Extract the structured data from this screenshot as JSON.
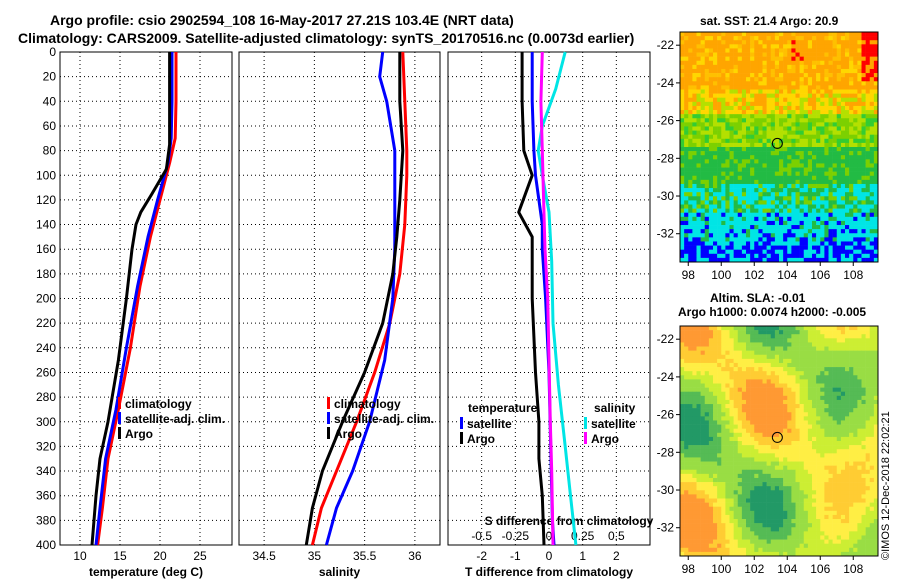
{
  "title": {
    "line1": "Argo profile: csio 2902594_108 16-May-2017 27.21S 103.4E (NRT data)",
    "line2": "Climatology: CARS2009. Satellite-adjusted climatology: synTS_20170516.nc (0.0073d earlier)"
  },
  "map_top": {
    "title": "sat. SST: 21.4 Argo: 20.9",
    "lat_ticks": [
      "-22",
      "-24",
      "-26",
      "-28",
      "-30",
      "-32"
    ],
    "lon_ticks": [
      "98",
      "100",
      "102",
      "104",
      "106",
      "108"
    ],
    "float_lon": 103.4,
    "float_lat": -27.21
  },
  "map_bottom": {
    "title1": "Altim. SLA: -0.01",
    "title2": "Argo h1000: 0.0074 h2000: -0.005",
    "lat_ticks": [
      "-22",
      "-24",
      "-26",
      "-28",
      "-30",
      "-32"
    ],
    "lon_ticks": [
      "98",
      "100",
      "102",
      "104",
      "106",
      "108"
    ],
    "float_lon": 103.4,
    "float_lat": -27.21
  },
  "imos": "©IMOS 12-Dec-2018 22:02:21",
  "colors": {
    "climatology": "#ff0000",
    "satellite": "#0000ff",
    "argo": "#000000",
    "sat_salinity": "#00e5e5",
    "argo_salinity": "#ff00ff"
  },
  "chart_data": [
    {
      "type": "line",
      "name": "temperature",
      "xlabel": "temperature (deg C)",
      "ylabel": "",
      "xlim": [
        7.5,
        29
      ],
      "ylim": [
        0,
        400
      ],
      "y_reversed": true,
      "grid": true,
      "xticks": [
        10,
        15,
        20,
        25
      ],
      "xtick_labels": [
        "10",
        "15",
        "20",
        "25"
      ],
      "yticks": [
        0,
        20,
        40,
        60,
        80,
        100,
        120,
        140,
        160,
        180,
        200,
        220,
        240,
        260,
        280,
        300,
        320,
        340,
        360,
        380,
        400
      ],
      "ytick_labels": [
        "0",
        "20",
        "40",
        "60",
        "80",
        "100",
        "120",
        "140",
        "160",
        "180",
        "200",
        "220",
        "240",
        "260",
        "280",
        "300",
        "320",
        "340",
        "360",
        "380",
        "400"
      ],
      "legend": [
        "climatology",
        "satellite-adj. clim.",
        "Argo"
      ],
      "legend_position": "lower-right",
      "series": [
        {
          "name": "climatology",
          "color": "#ff0000",
          "points": [
            [
              22.0,
              0
            ],
            [
              22.0,
              40
            ],
            [
              21.9,
              70
            ],
            [
              21.2,
              90
            ],
            [
              20.0,
              120
            ],
            [
              18.8,
              150
            ],
            [
              17.5,
              190
            ],
            [
              16.3,
              240
            ],
            [
              14.8,
              290
            ],
            [
              13.5,
              330
            ],
            [
              12.8,
              370
            ],
            [
              12.2,
              400
            ]
          ]
        },
        {
          "name": "satellite-adj. clim.",
          "color": "#0000ff",
          "points": [
            [
              21.5,
              0
            ],
            [
              21.5,
              40
            ],
            [
              21.4,
              70
            ],
            [
              21.0,
              90
            ],
            [
              19.7,
              120
            ],
            [
              18.5,
              150
            ],
            [
              17.2,
              190
            ],
            [
              15.8,
              240
            ],
            [
              14.5,
              290
            ],
            [
              13.2,
              330
            ],
            [
              12.5,
              370
            ],
            [
              12.0,
              400
            ]
          ]
        },
        {
          "name": "Argo",
          "color": "#000000",
          "points": [
            [
              21.2,
              0
            ],
            [
              21.2,
              40
            ],
            [
              21.2,
              75
            ],
            [
              20.8,
              95
            ],
            [
              19.0,
              115
            ],
            [
              17.6,
              130
            ],
            [
              17.0,
              140
            ],
            [
              16.5,
              160
            ],
            [
              15.8,
              200
            ],
            [
              14.8,
              250
            ],
            [
              13.5,
              300
            ],
            [
              12.5,
              330
            ],
            [
              12.0,
              360
            ],
            [
              11.5,
              400
            ]
          ]
        }
      ]
    },
    {
      "type": "line",
      "name": "salinity",
      "xlabel": "salinity",
      "ylabel": "",
      "xlim": [
        34.25,
        36.25
      ],
      "ylim": [
        0,
        400
      ],
      "y_reversed": true,
      "grid": true,
      "xticks": [
        34.5,
        35,
        35.5,
        36
      ],
      "xtick_labels": [
        "34.5",
        "35",
        "35.5",
        "36"
      ],
      "legend": [
        "climatology",
        "satellite-adj. clim.",
        "Argo"
      ],
      "legend_position": "lower-right",
      "series": [
        {
          "name": "climatology",
          "color": "#ff0000",
          "points": [
            [
              35.88,
              0
            ],
            [
              35.9,
              40
            ],
            [
              35.92,
              80
            ],
            [
              35.92,
              100
            ],
            [
              35.9,
              140
            ],
            [
              35.85,
              180
            ],
            [
              35.75,
              220
            ],
            [
              35.6,
              260
            ],
            [
              35.42,
              300
            ],
            [
              35.22,
              340
            ],
            [
              35.07,
              370
            ],
            [
              34.98,
              400
            ]
          ]
        },
        {
          "name": "satellite-adj. clim.",
          "color": "#0000ff",
          "points": [
            [
              35.68,
              0
            ],
            [
              35.65,
              20
            ],
            [
              35.72,
              40
            ],
            [
              35.8,
              80
            ],
            [
              35.8,
              120
            ],
            [
              35.8,
              160
            ],
            [
              35.78,
              200
            ],
            [
              35.7,
              250
            ],
            [
              35.55,
              300
            ],
            [
              35.38,
              340
            ],
            [
              35.22,
              370
            ],
            [
              35.12,
              400
            ]
          ]
        },
        {
          "name": "Argo",
          "color": "#000000",
          "points": [
            [
              35.85,
              0
            ],
            [
              35.85,
              40
            ],
            [
              35.88,
              80
            ],
            [
              35.85,
              120
            ],
            [
              35.82,
              150
            ],
            [
              35.78,
              180
            ],
            [
              35.68,
              220
            ],
            [
              35.5,
              260
            ],
            [
              35.28,
              300
            ],
            [
              35.08,
              340
            ],
            [
              34.98,
              370
            ],
            [
              34.92,
              400
            ]
          ]
        }
      ]
    },
    {
      "type": "line",
      "name": "difference",
      "xlabel": "T difference from climatology",
      "x2label": "S difference from climatology",
      "ylabel": "",
      "xlim": [
        -3,
        3
      ],
      "ylim": [
        0,
        400
      ],
      "y_reversed": true,
      "grid": true,
      "xticks": [
        -2,
        -1,
        0,
        1,
        2
      ],
      "xtick_labels": [
        "-2",
        "-1",
        "0",
        "1",
        "2"
      ],
      "x2ticks": [
        -0.5,
        -0.25,
        0,
        0.25,
        0.5
      ],
      "x2tick_labels": [
        "-0.5",
        "-0.25",
        "0",
        "0.25",
        "0.5"
      ],
      "x2lim": [
        -0.75,
        0.75
      ],
      "legend_groups": [
        {
          "heading": "temperature",
          "items": [
            "satellite",
            "Argo"
          ]
        },
        {
          "heading": "salinity",
          "items": [
            "satellite",
            "Argo"
          ]
        }
      ],
      "legend_position": "lower",
      "series": [
        {
          "name": "temperature satellite",
          "color": "#0000ff",
          "axis": "T",
          "points": [
            [
              -0.5,
              0
            ],
            [
              -0.5,
              40
            ],
            [
              -0.45,
              80
            ],
            [
              -0.4,
              100
            ],
            [
              -0.3,
              120
            ],
            [
              -0.2,
              140
            ],
            [
              -0.2,
              160
            ],
            [
              -0.1,
              200
            ],
            [
              0,
              260
            ],
            [
              0.05,
              320
            ],
            [
              0.1,
              380
            ],
            [
              0.15,
              400
            ]
          ]
        },
        {
          "name": "temperature Argo",
          "color": "#000000",
          "axis": "T",
          "points": [
            [
              -0.8,
              0
            ],
            [
              -0.8,
              40
            ],
            [
              -0.75,
              80
            ],
            [
              -0.5,
              100
            ],
            [
              -0.9,
              130
            ],
            [
              -0.5,
              150
            ],
            [
              -0.5,
              200
            ],
            [
              -0.4,
              260
            ],
            [
              -0.3,
              300
            ],
            [
              -0.3,
              330
            ],
            [
              -0.2,
              360
            ],
            [
              -0.15,
              400
            ]
          ]
        },
        {
          "name": "salinity satellite",
          "color": "#00e5e5",
          "axis": "S",
          "points": [
            [
              0.12,
              0
            ],
            [
              0.05,
              30
            ],
            [
              -0.05,
              60
            ],
            [
              -0.08,
              80
            ],
            [
              -0.05,
              100
            ],
            [
              0,
              130
            ],
            [
              0.02,
              170
            ],
            [
              0.03,
              220
            ],
            [
              0.07,
              270
            ],
            [
              0.12,
              320
            ],
            [
              0.16,
              360
            ],
            [
              0.2,
              400
            ]
          ]
        },
        {
          "name": "salinity Argo",
          "color": "#ff00ff",
          "axis": "S",
          "points": [
            [
              -0.05,
              0
            ],
            [
              -0.06,
              40
            ],
            [
              -0.05,
              80
            ],
            [
              -0.04,
              120
            ],
            [
              -0.03,
              160
            ],
            [
              -0.01,
              200
            ],
            [
              0,
              250
            ],
            [
              0.01,
              300
            ],
            [
              0.02,
              340
            ],
            [
              0.03,
              400
            ]
          ]
        }
      ]
    }
  ]
}
